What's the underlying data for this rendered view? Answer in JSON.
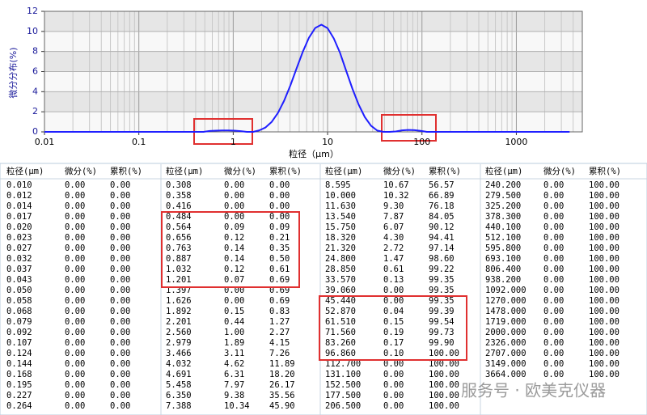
{
  "chart_data": {
    "type": "line",
    "ylabel": "微分分布(%)",
    "xlabel": "粒径（μm）",
    "xlog": true,
    "xlim": [
      0.01,
      5000
    ],
    "xticks": [
      0.01,
      0.1,
      1,
      10,
      100,
      1000
    ],
    "ylim": [
      0,
      12
    ],
    "yticks": [
      0,
      2,
      4,
      6,
      8,
      10,
      12
    ],
    "grid": true,
    "series": [
      {
        "color": "#1f1fff",
        "x": [
          0.01,
          0.416,
          0.484,
          0.564,
          0.656,
          0.763,
          0.887,
          1.032,
          1.201,
          1.397,
          1.626,
          1.892,
          2.201,
          2.56,
          2.979,
          3.466,
          4.032,
          4.691,
          5.458,
          6.35,
          7.388,
          8.595,
          10,
          11.63,
          13.54,
          15.75,
          18.32,
          21.32,
          24.8,
          28.85,
          33.57,
          39.06,
          45.44,
          52.87,
          61.51,
          71.56,
          83.26,
          96.86,
          112.7,
          3664
        ],
        "values": [
          0,
          0,
          0,
          0.09,
          0.12,
          0.14,
          0.14,
          0.12,
          0.07,
          0,
          0,
          0.15,
          0.44,
          1,
          1.89,
          3.11,
          4.62,
          6.31,
          7.97,
          9.38,
          10.34,
          10.67,
          10.32,
          9.3,
          7.87,
          6.07,
          4.3,
          2.72,
          1.47,
          0.61,
          0.13,
          0,
          0,
          0.04,
          0.15,
          0.19,
          0.17,
          0.1,
          0,
          0
        ]
      }
    ]
  },
  "table": {
    "columns": [
      "粒径(μm)",
      "微分(%)",
      "累积(%)"
    ],
    "groups": [
      [
        [
          "0.010",
          "0.00",
          "0.00"
        ],
        [
          "0.012",
          "0.00",
          "0.00"
        ],
        [
          "0.014",
          "0.00",
          "0.00"
        ],
        [
          "0.017",
          "0.00",
          "0.00"
        ],
        [
          "0.020",
          "0.00",
          "0.00"
        ],
        [
          "0.023",
          "0.00",
          "0.00"
        ],
        [
          "0.027",
          "0.00",
          "0.00"
        ],
        [
          "0.032",
          "0.00",
          "0.00"
        ],
        [
          "0.037",
          "0.00",
          "0.00"
        ],
        [
          "0.043",
          "0.00",
          "0.00"
        ],
        [
          "0.050",
          "0.00",
          "0.00"
        ],
        [
          "0.058",
          "0.00",
          "0.00"
        ],
        [
          "0.068",
          "0.00",
          "0.00"
        ],
        [
          "0.079",
          "0.00",
          "0.00"
        ],
        [
          "0.092",
          "0.00",
          "0.00"
        ],
        [
          "0.107",
          "0.00",
          "0.00"
        ],
        [
          "0.124",
          "0.00",
          "0.00"
        ],
        [
          "0.144",
          "0.00",
          "0.00"
        ],
        [
          "0.168",
          "0.00",
          "0.00"
        ],
        [
          "0.195",
          "0.00",
          "0.00"
        ],
        [
          "0.227",
          "0.00",
          "0.00"
        ],
        [
          "0.264",
          "0.00",
          "0.00"
        ]
      ],
      [
        [
          "0.308",
          "0.00",
          "0.00"
        ],
        [
          "0.358",
          "0.00",
          "0.00"
        ],
        [
          "0.416",
          "0.00",
          "0.00"
        ],
        [
          "0.484",
          "0.00",
          "0.00"
        ],
        [
          "0.564",
          "0.09",
          "0.09"
        ],
        [
          "0.656",
          "0.12",
          "0.21"
        ],
        [
          "0.763",
          "0.14",
          "0.35"
        ],
        [
          "0.887",
          "0.14",
          "0.50"
        ],
        [
          "1.032",
          "0.12",
          "0.61"
        ],
        [
          "1.201",
          "0.07",
          "0.69"
        ],
        [
          "1.397",
          "0.00",
          "0.69"
        ],
        [
          "1.626",
          "0.00",
          "0.69"
        ],
        [
          "1.892",
          "0.15",
          "0.83"
        ],
        [
          "2.201",
          "0.44",
          "1.27"
        ],
        [
          "2.560",
          "1.00",
          "2.27"
        ],
        [
          "2.979",
          "1.89",
          "4.15"
        ],
        [
          "3.466",
          "3.11",
          "7.26"
        ],
        [
          "4.032",
          "4.62",
          "11.89"
        ],
        [
          "4.691",
          "6.31",
          "18.20"
        ],
        [
          "5.458",
          "7.97",
          "26.17"
        ],
        [
          "6.350",
          "9.38",
          "35.56"
        ],
        [
          "7.388",
          "10.34",
          "45.90"
        ]
      ],
      [
        [
          "8.595",
          "10.67",
          "56.57"
        ],
        [
          "10.000",
          "10.32",
          "66.89"
        ],
        [
          "11.630",
          "9.30",
          "76.18"
        ],
        [
          "13.540",
          "7.87",
          "84.05"
        ],
        [
          "15.750",
          "6.07",
          "90.12"
        ],
        [
          "18.320",
          "4.30",
          "94.41"
        ],
        [
          "21.320",
          "2.72",
          "97.14"
        ],
        [
          "24.800",
          "1.47",
          "98.60"
        ],
        [
          "28.850",
          "0.61",
          "99.22"
        ],
        [
          "33.570",
          "0.13",
          "99.35"
        ],
        [
          "39.060",
          "0.00",
          "99.35"
        ],
        [
          "45.440",
          "0.00",
          "99.35"
        ],
        [
          "52.870",
          "0.04",
          "99.39"
        ],
        [
          "61.510",
          "0.15",
          "99.54"
        ],
        [
          "71.560",
          "0.19",
          "99.73"
        ],
        [
          "83.260",
          "0.17",
          "99.90"
        ],
        [
          "96.860",
          "0.10",
          "100.00"
        ],
        [
          "112.700",
          "0.00",
          "100.00"
        ],
        [
          "131.100",
          "0.00",
          "100.00"
        ],
        [
          "152.500",
          "0.00",
          "100.00"
        ],
        [
          "177.500",
          "0.00",
          "100.00"
        ],
        [
          "206.500",
          "0.00",
          "100.00"
        ]
      ],
      [
        [
          "240.200",
          "0.00",
          "100.00"
        ],
        [
          "279.500",
          "0.00",
          "100.00"
        ],
        [
          "325.200",
          "0.00",
          "100.00"
        ],
        [
          "378.300",
          "0.00",
          "100.00"
        ],
        [
          "440.100",
          "0.00",
          "100.00"
        ],
        [
          "512.100",
          "0.00",
          "100.00"
        ],
        [
          "595.800",
          "0.00",
          "100.00"
        ],
        [
          "693.100",
          "0.00",
          "100.00"
        ],
        [
          "806.400",
          "0.00",
          "100.00"
        ],
        [
          "938.200",
          "0.00",
          "100.00"
        ],
        [
          "1092.000",
          "0.00",
          "100.00"
        ],
        [
          "1270.000",
          "0.00",
          "100.00"
        ],
        [
          "1478.000",
          "0.00",
          "100.00"
        ],
        [
          "1719.000",
          "0.00",
          "100.00"
        ],
        [
          "2000.000",
          "0.00",
          "100.00"
        ],
        [
          "2326.000",
          "0.00",
          "100.00"
        ],
        [
          "2707.000",
          "0.00",
          "100.00"
        ],
        [
          "3149.000",
          "0.00",
          "100.00"
        ],
        [
          "3664.000",
          "0.00",
          "100.00"
        ]
      ]
    ]
  },
  "watermark": "服务号 · 欧美克仪器"
}
